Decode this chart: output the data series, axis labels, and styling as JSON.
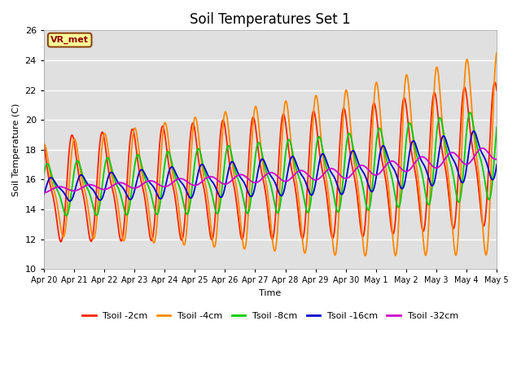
{
  "title": "Soil Temperatures Set 1",
  "xlabel": "Time",
  "ylabel": "Soil Temperature (C)",
  "ylim": [
    10,
    26
  ],
  "yticks": [
    10,
    12,
    14,
    16,
    18,
    20,
    22,
    24,
    26
  ],
  "plot_bg_color": "#e0e0e0",
  "fig_bg_color": "#ffffff",
  "annotation_text": "VR_met",
  "annotation_color": "#8b0000",
  "annotation_bg": "#ffff99",
  "annotation_border": "#8b4513",
  "series_colors": [
    "#ff2200",
    "#ff8800",
    "#00cc00",
    "#0000cc",
    "#cc00cc"
  ],
  "series_labels": [
    "Tsoil -2cm",
    "Tsoil -4cm",
    "Tsoil -8cm",
    "Tsoil -16cm",
    "Tsoil -32cm"
  ],
  "x_tick_labels": [
    "Apr 20",
    "Apr 21",
    "Apr 22",
    "Apr 23",
    "Apr 24",
    "Apr 25",
    "Apr 26",
    "Apr 27",
    "Apr 28",
    "Apr 29",
    "Apr 30",
    "May 1",
    "May 2",
    "May 3",
    "May 4",
    "May 5"
  ],
  "num_days": 15,
  "points_per_day": 48
}
